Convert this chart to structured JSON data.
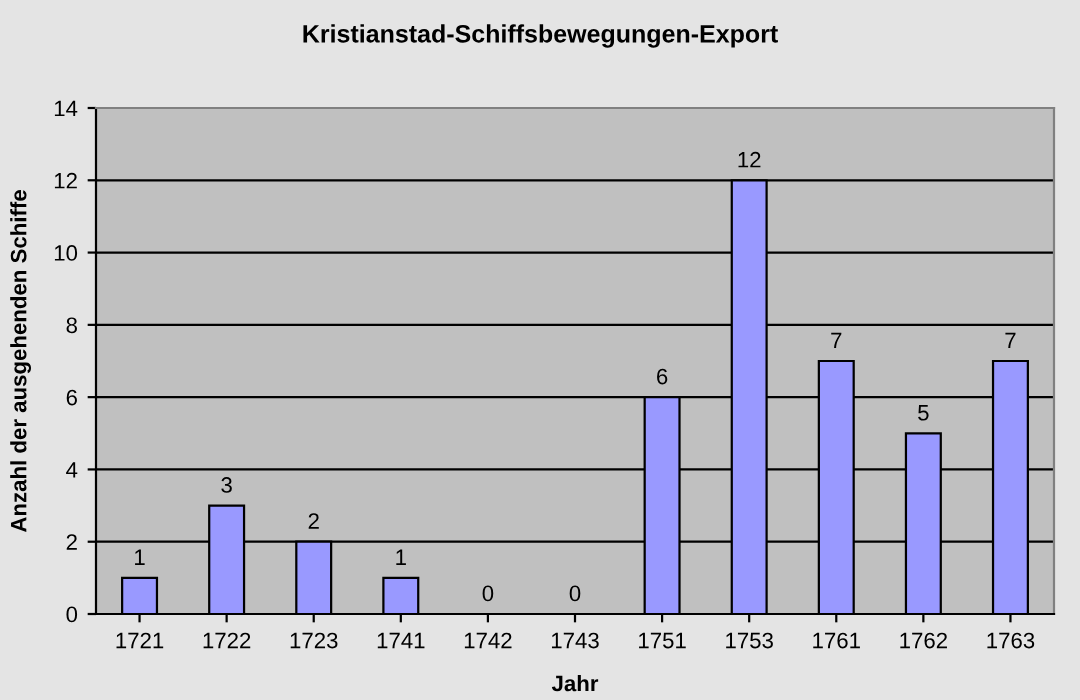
{
  "chart_data": {
    "type": "bar",
    "title": "Kristianstad-Schiffsbewegungen-Export",
    "xlabel": "Jahr",
    "ylabel": "Anzahl der ausgehenden Schiffe",
    "categories": [
      "1721",
      "1722",
      "1723",
      "1741",
      "1742",
      "1743",
      "1751",
      "1753",
      "1761",
      "1762",
      "1763"
    ],
    "values": [
      1,
      3,
      2,
      1,
      0,
      0,
      6,
      12,
      7,
      5,
      7
    ],
    "color": "#9999ff",
    "ylim": [
      0,
      14
    ],
    "yticks": [
      0,
      2,
      4,
      6,
      8,
      10,
      12,
      14
    ],
    "grid": "y",
    "data_labels": true
  }
}
